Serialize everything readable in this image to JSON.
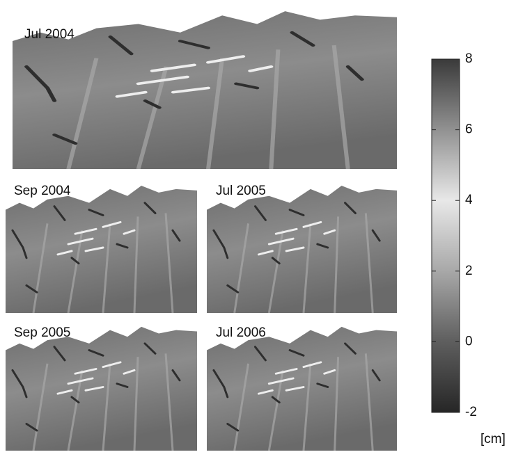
{
  "panels": [
    {
      "label": "Jul 2004"
    },
    {
      "label": "Sep 2004"
    },
    {
      "label": "Jul 2005"
    },
    {
      "label": "Sep 2005"
    },
    {
      "label": "Jul 2006"
    }
  ],
  "colorbar": {
    "lim": [
      -2,
      8
    ],
    "ticks": [
      -2,
      0,
      2,
      4,
      6,
      8
    ],
    "unit": "[cm]"
  }
}
